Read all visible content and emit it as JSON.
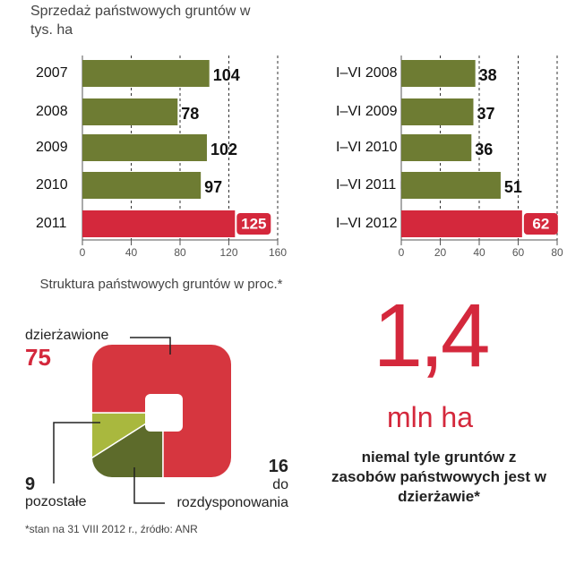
{
  "title": "Sprzedaż państwowych gruntów w tys. ha",
  "chart_data": [
    {
      "type": "hbar",
      "categories": [
        "2007",
        "2008",
        "2009",
        "2010",
        "2011"
      ],
      "values": [
        104,
        78,
        102,
        97,
        125
      ],
      "colors": [
        "#6e7c33",
        "#6e7c33",
        "#6e7c33",
        "#6e7c33",
        "#d4283c"
      ],
      "xlim": [
        0,
        160
      ],
      "xticks": [
        0,
        40,
        80,
        120,
        160
      ],
      "grid": true
    },
    {
      "type": "hbar",
      "categories": [
        "I–VI 2008 r.",
        "I–VI 2009 r.",
        "I–VI 2010 r.",
        "I–VI 2011 r.",
        "I–VI 2012 r."
      ],
      "values": [
        38,
        37,
        36,
        51,
        62
      ],
      "colors": [
        "#6e7c33",
        "#6e7c33",
        "#6e7c33",
        "#6e7c33",
        "#d4283c"
      ],
      "xlim": [
        0,
        80
      ],
      "xticks": [
        0,
        20,
        40,
        60,
        80
      ],
      "grid": true
    },
    {
      "type": "square-donut",
      "title": "Struktura państwowych gruntów w proc.*",
      "categories": [
        "dzierżawione",
        "pozostałe",
        "do rozdysponowania"
      ],
      "values": [
        75,
        9,
        16
      ],
      "colors": [
        "#d6363f",
        "#a9b83e",
        "#5d6b2b"
      ]
    }
  ],
  "stat": {
    "value": "1,4",
    "unit": "mln ha",
    "caption": "niemal tyle gruntów z zasobów państwowych jest w dzierżawie*"
  },
  "footnote": "*stan na 31 VIII 2012 r., źródło: ANR"
}
